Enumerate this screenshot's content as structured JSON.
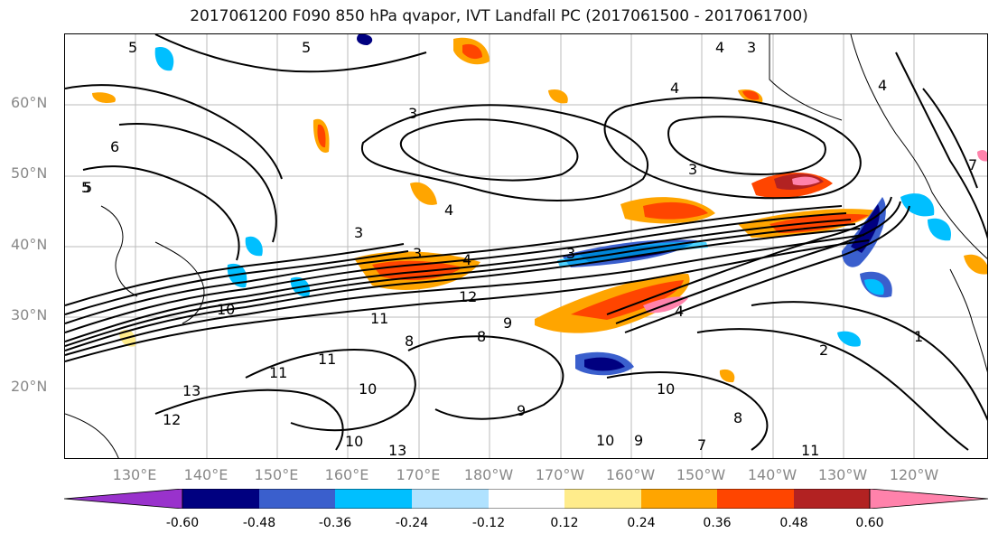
{
  "title": "2017061200 F090 850 hPa qvapor, IVT Landfall PC (2017061500 - 2017061700)",
  "lat_labels": [
    "60°N",
    "50°N",
    "40°N",
    "30°N",
    "20°N"
  ],
  "lon_labels": [
    "130°E",
    "140°E",
    "150°E",
    "160°E",
    "170°E",
    "180°W",
    "170°W",
    "160°W",
    "150°W",
    "140°W",
    "130°W",
    "120°W"
  ],
  "contour_labels": [
    "5",
    "5",
    "5",
    "4",
    "4",
    "3",
    "4",
    "3",
    "3",
    "3",
    "4",
    "3",
    "3",
    "4",
    "12",
    "10",
    "11",
    "9",
    "8",
    "11",
    "13",
    "12",
    "10",
    "11",
    "13",
    "9",
    "8",
    "10",
    "8",
    "10",
    "9",
    "10",
    "7",
    "11",
    "2",
    "1",
    "7",
    "6",
    "5",
    "4"
  ],
  "colorbar": {
    "ticks": [
      "-0.60",
      "-0.48",
      "-0.36",
      "-0.24",
      "-0.12",
      "0.12",
      "0.24",
      "0.36",
      "0.48",
      "0.60"
    ],
    "colors": [
      "#9932cc",
      "#000080",
      "#3a5fcd",
      "#00bfff",
      "#b0e2ff",
      "#ffffff",
      "#ffec8b",
      "#ffa500",
      "#ff4500",
      "#b22222",
      "#ff82ab"
    ]
  }
}
